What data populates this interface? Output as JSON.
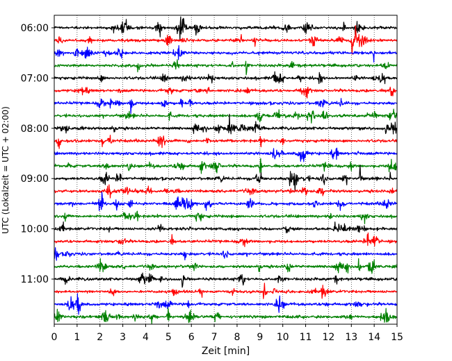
{
  "chart_data": {
    "type": "line",
    "title": "",
    "xlabel": "Zeit  [min]",
    "ylabel": "UTC (Lokalzeit = UTC + 02:00)",
    "xlim": [
      0,
      15
    ],
    "x_ticks": [
      0,
      1,
      2,
      3,
      4,
      5,
      6,
      7,
      8,
      9,
      10,
      11,
      12,
      13,
      14,
      15
    ],
    "x_tick_labels": [
      "0",
      "1",
      "2",
      "3",
      "4",
      "5",
      "6",
      "7",
      "8",
      "9",
      "10",
      "11",
      "12",
      "13",
      "14",
      "15"
    ],
    "y_tick_labels": [
      "06:00",
      "07:00",
      "08:00",
      "09:00",
      "10:00",
      "11:00"
    ],
    "trace_start_times": [
      "06:00",
      "06:15",
      "06:30",
      "06:45",
      "07:00",
      "07:15",
      "07:30",
      "07:45",
      "08:00",
      "08:15",
      "08:30",
      "08:45",
      "09:00",
      "09:15",
      "09:30",
      "09:45",
      "10:00",
      "10:15",
      "10:30",
      "10:45",
      "11:00",
      "11:15",
      "11:30",
      "11:45"
    ],
    "trace_colors": [
      "#000000",
      "#ff0000",
      "#0000ff",
      "#008000"
    ],
    "grid": "vertical dotted",
    "legend": "none"
  }
}
